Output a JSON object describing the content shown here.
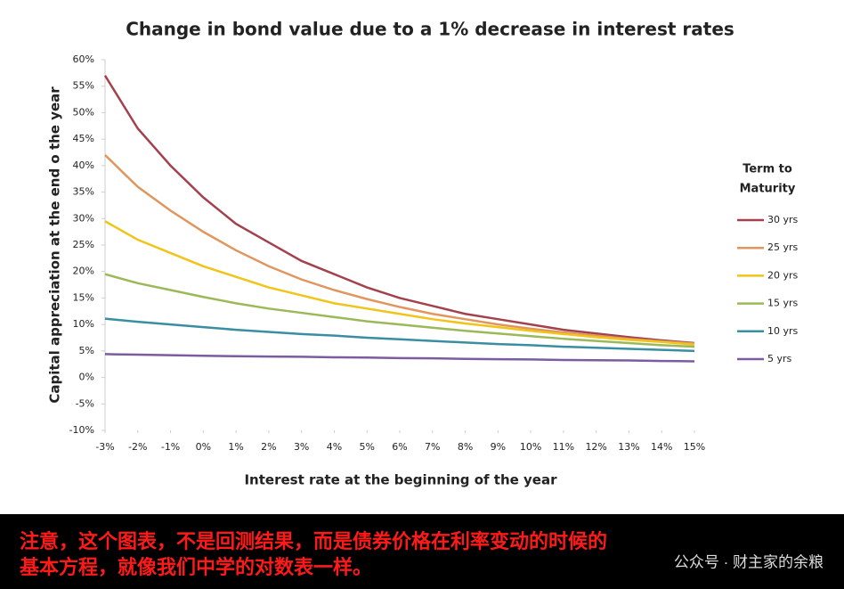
{
  "chart_data": {
    "type": "line",
    "title": "Change in bond value due to a 1% decrease in interest rates",
    "x_label": "Interest rate at the beginning of the year",
    "y_label": "Capital appreciation at the end o the year",
    "legend_title": [
      "Term to",
      "Maturity"
    ],
    "legend_position": "right",
    "grid": false,
    "x": [
      -3,
      -2,
      -1,
      0,
      1,
      2,
      3,
      4,
      5,
      6,
      7,
      8,
      9,
      10,
      11,
      12,
      13,
      14,
      15
    ],
    "xlim": [
      -3,
      15
    ],
    "xticks": [
      {
        "value": -3,
        "label": "-3%"
      },
      {
        "value": -2,
        "label": "-2%"
      },
      {
        "value": -1,
        "label": "-1%"
      },
      {
        "value": 0,
        "label": "0%"
      },
      {
        "value": 1,
        "label": "1%"
      },
      {
        "value": 2,
        "label": "2%"
      },
      {
        "value": 3,
        "label": "3%"
      },
      {
        "value": 4,
        "label": "4%"
      },
      {
        "value": 5,
        "label": "5%"
      },
      {
        "value": 6,
        "label": "6%"
      },
      {
        "value": 7,
        "label": "7%"
      },
      {
        "value": 8,
        "label": "8%"
      },
      {
        "value": 9,
        "label": "9%"
      },
      {
        "value": 10,
        "label": "10%"
      },
      {
        "value": 11,
        "label": "11%"
      },
      {
        "value": 12,
        "label": "12%"
      },
      {
        "value": 13,
        "label": "13%"
      },
      {
        "value": 14,
        "label": "14%"
      },
      {
        "value": 15,
        "label": "15%"
      }
    ],
    "ylim": [
      -10,
      60
    ],
    "yticks": [
      {
        "value": -10,
        "label": "-10%"
      },
      {
        "value": -5,
        "label": "-5%"
      },
      {
        "value": 0,
        "label": "0%"
      },
      {
        "value": 5,
        "label": "5%"
      },
      {
        "value": 10,
        "label": "10%"
      },
      {
        "value": 15,
        "label": "15%"
      },
      {
        "value": 20,
        "label": "20%"
      },
      {
        "value": 25,
        "label": "25%"
      },
      {
        "value": 30,
        "label": "30%"
      },
      {
        "value": 35,
        "label": "35%"
      },
      {
        "value": 40,
        "label": "40%"
      },
      {
        "value": 45,
        "label": "45%"
      },
      {
        "value": 50,
        "label": "50%"
      },
      {
        "value": 55,
        "label": "55%"
      },
      {
        "value": 60,
        "label": "60%"
      }
    ],
    "series": [
      {
        "name": "30 yrs",
        "color": "#a3424d",
        "values": [
          57,
          47,
          40,
          34,
          29,
          25.5,
          22,
          19.5,
          17,
          15,
          13.5,
          12,
          11,
          10,
          9,
          8.3,
          7.6,
          7,
          6.5
        ]
      },
      {
        "name": "25 yrs",
        "color": "#e0965e",
        "values": [
          42,
          36,
          31.5,
          27.5,
          24,
          21,
          18.5,
          16.5,
          14.8,
          13.3,
          12,
          11,
          10,
          9.2,
          8.5,
          7.9,
          7.3,
          6.8,
          6.4
        ]
      },
      {
        "name": "20 yrs",
        "color": "#f0c419",
        "values": [
          29.5,
          26,
          23.5,
          21,
          19,
          17,
          15.5,
          14,
          13,
          12,
          11,
          10.2,
          9.5,
          8.8,
          8.2,
          7.6,
          7.1,
          6.7,
          6.2
        ]
      },
      {
        "name": "15 yrs",
        "color": "#9bb958",
        "values": [
          19.5,
          17.8,
          16.5,
          15.2,
          14,
          13,
          12.2,
          11.4,
          10.6,
          10,
          9.4,
          8.8,
          8.3,
          7.8,
          7.3,
          6.9,
          6.5,
          6.1,
          5.8
        ]
      },
      {
        "name": "10 yrs",
        "color": "#3a8ea2",
        "values": [
          11.1,
          10.5,
          10,
          9.5,
          9,
          8.6,
          8.2,
          7.9,
          7.5,
          7.2,
          6.9,
          6.6,
          6.3,
          6.1,
          5.8,
          5.6,
          5.4,
          5.2,
          5
        ]
      },
      {
        "name": "5 yrs",
        "color": "#7b5ca0",
        "values": [
          4.4,
          4.3,
          4.2,
          4.1,
          4.0,
          3.95,
          3.9,
          3.8,
          3.75,
          3.65,
          3.6,
          3.5,
          3.45,
          3.4,
          3.3,
          3.25,
          3.2,
          3.1,
          3.05
        ]
      }
    ]
  },
  "caption": [
    "注意，这个图表，不是回测结果，而是债券价格在利率变动的时候的",
    "基本方程，就像我们中学的对数表一样。"
  ],
  "footer": "公众号 · 财主家的余粮"
}
